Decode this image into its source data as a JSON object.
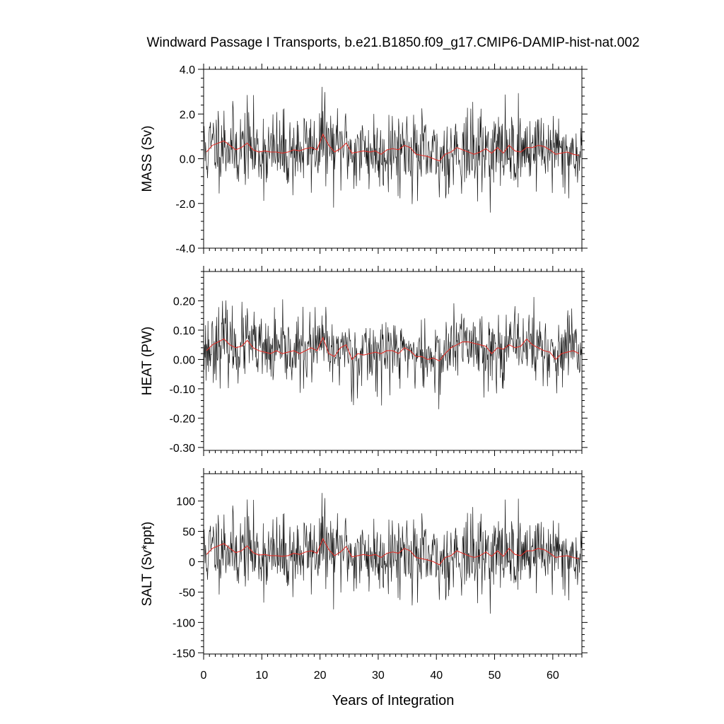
{
  "figure": {
    "title": "Windward Passage I Transports, b.e21.B1850.f09_g17.CMIP6-DAMIP-hist-nat.002",
    "xlabel": "Years of Integration"
  },
  "colors": {
    "raw_line": "#1a1a1a",
    "smooth_line": "#e0302a"
  },
  "chart_data": [
    {
      "type": "line",
      "ylabel": "MASS (Sv)",
      "xlim": [
        0,
        65
      ],
      "ylim": [
        -4.0,
        4.0
      ],
      "xticks": [
        0,
        10,
        20,
        30,
        40,
        50,
        60
      ],
      "yticks": [
        -4.0,
        -2.0,
        0.0,
        2.0,
        4.0
      ],
      "yticklabels": [
        "-4.0",
        "-2.0",
        "0.0",
        "2.0",
        "4.0"
      ],
      "grid": false,
      "series": [
        {
          "style": "monthly",
          "baseline": 0.3,
          "amplitude": 0.9,
          "seed": 11
        },
        {
          "style": "annual-mean",
          "x": [
            0.5,
            1.5,
            2.5,
            3.5,
            4.5,
            5.5,
            6.5,
            7.5,
            8.5,
            9.5,
            10.5,
            11.5,
            12.5,
            13.5,
            14.5,
            15.5,
            16.5,
            17.5,
            18.5,
            19.5,
            20.5,
            21.5,
            22.5,
            23.5,
            24.5,
            25.5,
            26.5,
            27.5,
            28.5,
            29.5,
            30.5,
            31.5,
            32.5,
            33.5,
            34.5,
            35.5,
            36.5,
            37.5,
            38.5,
            39.5,
            40.5,
            41.5,
            42.5,
            43.5,
            44.5,
            45.5,
            46.5,
            47.5,
            48.5,
            49.5,
            50.5,
            51.5,
            52.5,
            53.5,
            54.5,
            55.5,
            56.5,
            57.5,
            58.5,
            59.5,
            60.5,
            61.5,
            62.5,
            63.5,
            64.5
          ],
          "y": [
            0.3,
            0.6,
            0.7,
            0.8,
            0.6,
            0.4,
            0.5,
            0.7,
            0.4,
            0.3,
            0.35,
            0.3,
            0.3,
            0.25,
            0.3,
            0.4,
            0.35,
            0.45,
            0.5,
            0.4,
            1.1,
            0.6,
            0.3,
            0.45,
            0.7,
            0.25,
            0.3,
            0.35,
            0.3,
            0.35,
            0.2,
            0.4,
            0.45,
            0.4,
            0.6,
            0.5,
            0.2,
            0.15,
            0.1,
            0.0,
            -0.1,
            0.2,
            0.3,
            0.5,
            0.4,
            0.3,
            0.2,
            0.3,
            0.45,
            0.25,
            0.5,
            0.25,
            0.6,
            0.35,
            0.3,
            0.5,
            0.5,
            0.6,
            0.55,
            0.4,
            0.2,
            0.25,
            0.3,
            0.2,
            0.15
          ]
        }
      ]
    },
    {
      "type": "line",
      "ylabel": "HEAT (PW)",
      "xlim": [
        0,
        65
      ],
      "ylim": [
        -0.31,
        0.3
      ],
      "xticks": [
        0,
        10,
        20,
        30,
        40,
        50,
        60
      ],
      "yticks": [
        -0.3,
        -0.2,
        -0.1,
        0.0,
        0.1,
        0.2
      ],
      "yticklabels": [
        "-0.30",
        "-0.20",
        "-0.10",
        "0.00",
        "0.10",
        "0.20"
      ],
      "grid": false,
      "series": [
        {
          "style": "monthly",
          "baseline": 0.03,
          "amplitude": 0.06,
          "seed": 23
        },
        {
          "style": "annual-mean",
          "x": [
            0.5,
            1.5,
            2.5,
            3.5,
            4.5,
            5.5,
            6.5,
            7.5,
            8.5,
            9.5,
            10.5,
            11.5,
            12.5,
            13.5,
            14.5,
            15.5,
            16.5,
            17.5,
            18.5,
            19.5,
            20.5,
            21.5,
            22.5,
            23.5,
            24.5,
            25.5,
            26.5,
            27.5,
            28.5,
            29.5,
            30.5,
            31.5,
            32.5,
            33.5,
            34.5,
            35.5,
            36.5,
            37.5,
            38.5,
            39.5,
            40.5,
            41.5,
            42.5,
            43.5,
            44.5,
            45.5,
            46.5,
            47.5,
            48.5,
            49.5,
            50.5,
            51.5,
            52.5,
            53.5,
            54.5,
            55.5,
            56.5,
            57.5,
            58.5,
            59.5,
            60.5,
            61.5,
            62.5,
            63.5,
            64.5
          ],
          "y": [
            0.03,
            0.05,
            0.06,
            0.07,
            0.05,
            0.04,
            0.045,
            0.065,
            0.04,
            0.03,
            0.025,
            0.02,
            0.03,
            0.02,
            0.025,
            0.03,
            0.02,
            0.03,
            0.04,
            0.03,
            0.075,
            0.02,
            0.01,
            0.04,
            0.05,
            0.0,
            0.02,
            0.015,
            0.02,
            0.025,
            0.02,
            0.03,
            0.03,
            0.02,
            0.04,
            0.03,
            0.01,
            0.01,
            0.0,
            0.005,
            -0.005,
            0.02,
            0.04,
            0.05,
            0.06,
            0.06,
            0.055,
            0.05,
            0.045,
            0.02,
            0.04,
            0.035,
            0.05,
            0.04,
            0.045,
            0.07,
            0.05,
            0.04,
            0.03,
            0.025,
            0.0,
            0.02,
            0.025,
            0.03,
            0.02
          ]
        }
      ]
    },
    {
      "type": "line",
      "ylabel": "SALT (Sv*ppt)",
      "xlim": [
        0,
        65
      ],
      "ylim": [
        -152,
        145
      ],
      "xticks": [
        0,
        10,
        20,
        30,
        40,
        50,
        60
      ],
      "yticks": [
        -150,
        -100,
        -50,
        0,
        50,
        100
      ],
      "yticklabels": [
        "-150",
        "-100",
        "-50",
        "0",
        "50",
        "100"
      ],
      "grid": false,
      "series": [
        {
          "style": "monthly",
          "baseline": 12,
          "amplitude": 32,
          "seed": 11
        },
        {
          "style": "annual-mean",
          "x": [
            0.5,
            1.5,
            2.5,
            3.5,
            4.5,
            5.5,
            6.5,
            7.5,
            8.5,
            9.5,
            10.5,
            11.5,
            12.5,
            13.5,
            14.5,
            15.5,
            16.5,
            17.5,
            18.5,
            19.5,
            20.5,
            21.5,
            22.5,
            23.5,
            24.5,
            25.5,
            26.5,
            27.5,
            28.5,
            29.5,
            30.5,
            31.5,
            32.5,
            33.5,
            34.5,
            35.5,
            36.5,
            37.5,
            38.5,
            39.5,
            40.5,
            41.5,
            42.5,
            43.5,
            44.5,
            45.5,
            46.5,
            47.5,
            48.5,
            49.5,
            50.5,
            51.5,
            52.5,
            53.5,
            54.5,
            55.5,
            56.5,
            57.5,
            58.5,
            59.5,
            60.5,
            61.5,
            62.5,
            63.5,
            64.5
          ],
          "y": [
            12,
            22,
            26,
            30,
            22,
            15,
            18,
            26,
            15,
            11,
            12,
            10,
            10,
            9,
            10,
            14,
            12,
            16,
            18,
            14,
            38,
            20,
            10,
            16,
            25,
            8,
            10,
            12,
            10,
            12,
            7,
            14,
            16,
            14,
            22,
            18,
            7,
            5,
            3,
            0,
            -5,
            7,
            10,
            18,
            14,
            10,
            7,
            10,
            16,
            9,
            18,
            9,
            22,
            12,
            10,
            18,
            18,
            22,
            20,
            14,
            7,
            9,
            10,
            7,
            5
          ]
        }
      ]
    }
  ]
}
